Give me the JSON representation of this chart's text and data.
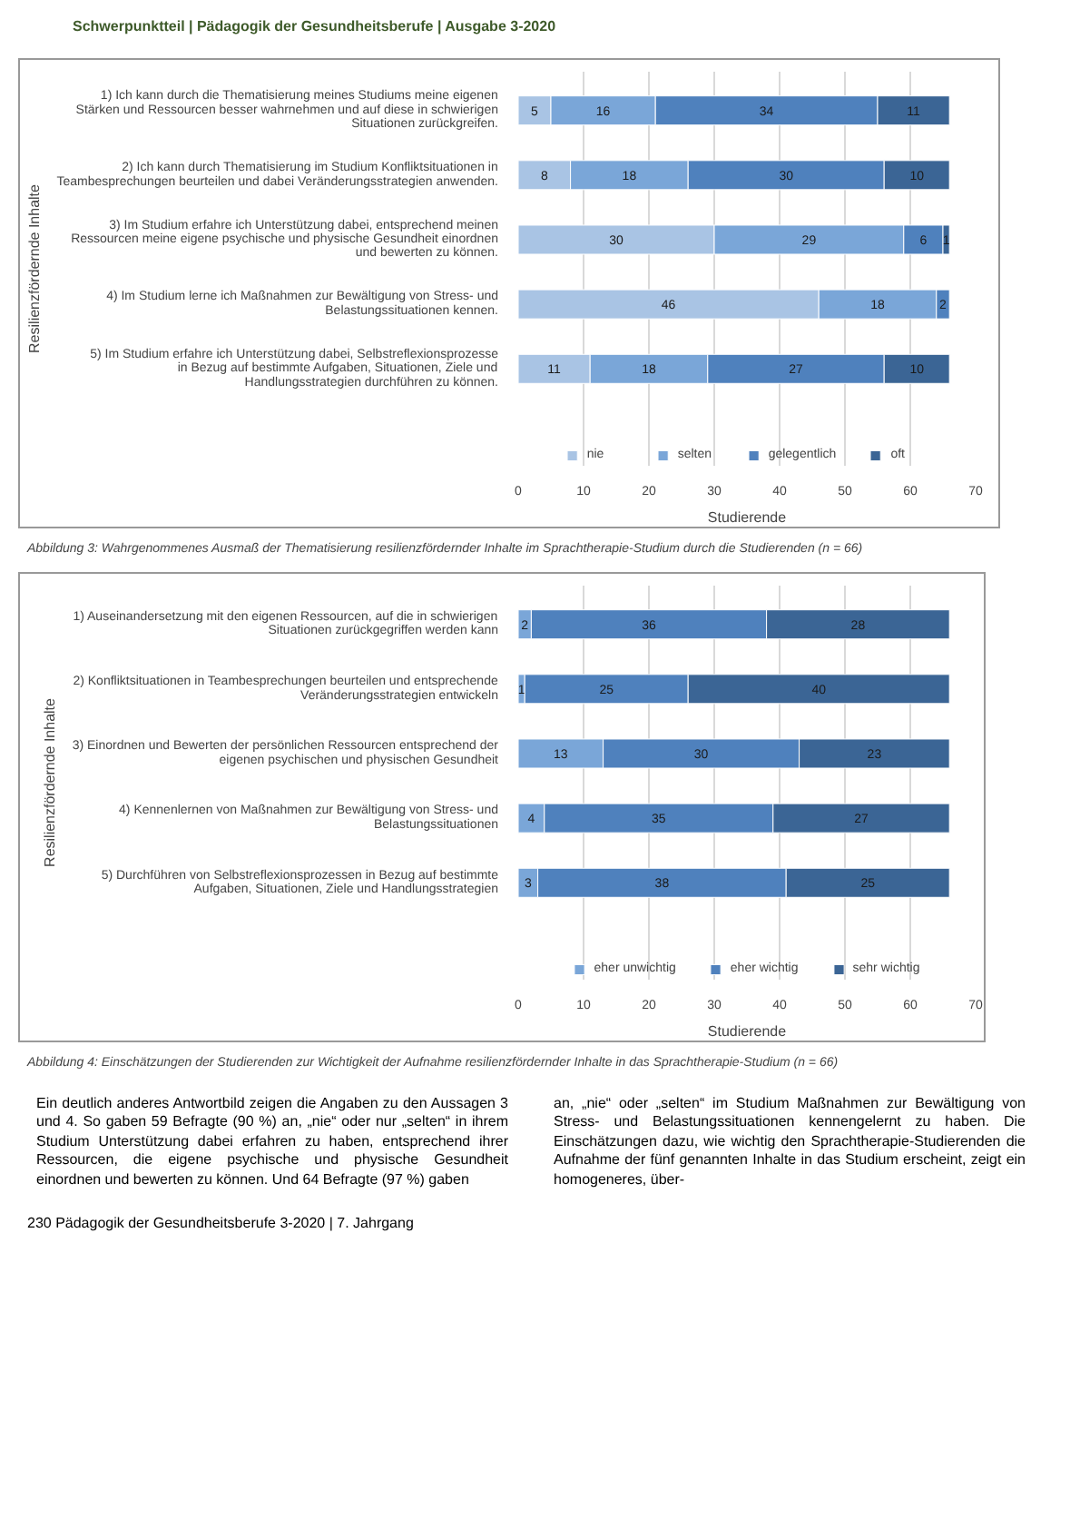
{
  "chart_data": [
    {
      "type": "bar",
      "orientation": "horizontal",
      "stacked": true,
      "data_labels": true,
      "grid": "x",
      "legend": "bottom",
      "title": "Abbildung 3: Wahrgenommenes Ausmaß der Thematisierung resilienzfördernder Inhalte im Sprachtherapie-Studium durch die Studierenden (n = 66)",
      "xlabel": "Studierende",
      "ylabel": "Resilienzfördernde Inhalte",
      "annotations": [
        "Schwerpunktteil | Pädagogik der Gesundheitsberufe | Ausgabe 3-2020"
      ],
      "categories": [
        "1) Ich kann durch die Thematisierung meines Studiums meine eigenen Stärken und Ressourcen besser wahrnehmen und auf diese in schwierigen Situationen zurückgreifen.",
        "2) Ich kann durch Thematisierung im Studium Konfliktsituationen in Teambesprechungen beurteilen und dabei Veränderungsstrategien anwenden.",
        "3) Im Studium erfahre ich Unterstützung dabei, entsprechend meinen Ressourcen meine eigene psychische und physische Gesundheit einordnen und bewerten zu können.",
        "4) Im Studium lerne ich Maßnahmen zur Bewältigung von Stress- und Belastungssituationen kennen.",
        "5) Im Studium erfahre ich Unterstützung dabei, Selbstreflexionsprozesse in Bezug auf bestimmte Aufgaben, Situationen, Ziele und Handlungsstrategien durchführen zu können."
      ],
      "xlim": [
        0,
        70
      ],
      "xticks": [
        0,
        10,
        20,
        30,
        40,
        50,
        60,
        70
      ],
      "series": [
        {
          "name": "nie",
          "color": "#a9c4e4",
          "values": [
            5,
            8,
            30,
            46,
            11
          ]
        },
        {
          "name": "selten",
          "color": "#7aa6d8",
          "values": [
            16,
            18,
            29,
            18,
            18
          ]
        },
        {
          "name": "gelegentlich",
          "color": "#4f81bd",
          "values": [
            34,
            30,
            6,
            2,
            27
          ]
        },
        {
          "name": "oft",
          "color": "#3b6595",
          "values": [
            11,
            10,
            1,
            null,
            10
          ]
        }
      ]
    },
    {
      "type": "bar",
      "orientation": "horizontal",
      "stacked": true,
      "data_labels": true,
      "grid": "x",
      "legend": "bottom",
      "title": "Abbildung 4: Einschätzungen der Studierenden zur Wichtigkeit der Aufnahme resilienzfördernder Inhalte in das Sprachtherapie-Studium (n = 66)",
      "xlabel": "Studierende",
      "ylabel": "Resilienzfördernde Inhalte",
      "annotations": [
        "Ein deutlich anderes Antwortbild zeigen die Angaben zu den Aussagen 3 und 4. So gaben 59 Befragte (90 %) an, „nie“ oder nur „selten“ in ihrem Studium Unterstützung dabei erfahren zu haben, entsprechend ihrer Ressourcen, die eigene psychische und physische Gesundheit einordnen und bewerten zu können. Und 64 Befragte (97 %) gaben",
        "an, „nie“ oder „selten“ im Studium Maßnahmen zur Bewältigung von Stress- und Belastungssituationen kennengelernt zu haben. Die Einschätzungen dazu, wie wichtig den Sprachtherapie-Studierenden die Aufnahme der fünf genannten Inhalte in das Studium erscheint, zeigt ein homogeneres, über-",
        "230   Pädagogik der Gesundheitsberufe 3-2020 | 7. Jahrgang"
      ],
      "categories": [
        "1) Auseinandersetzung mit den eigenen Ressourcen, auf die in schwierigen Situationen zurückgegriffen werden kann",
        "2) Konfliktsituationen in Teambesprechungen beurteilen und entsprechende Veränderungsstrategien entwickeln",
        "3) Einordnen und Bewerten der persönlichen Ressourcen entsprechend der eigenen psychischen und physischen Gesundheit",
        "4) Kennenlernen von Maßnahmen zur Bewältigung von Stress- und Belastungssituationen",
        "5) Durchführen von Selbstreflexionsprozessen in Bezug auf bestimmte Aufgaben, Situationen, Ziele und Handlungsstrategien"
      ],
      "xlim": [
        0,
        70
      ],
      "xticks": [
        0,
        10,
        20,
        30,
        40,
        50,
        60,
        70
      ],
      "series": [
        {
          "name": "eher unwichtig",
          "color": "#7aa6d8",
          "values": [
            2,
            1,
            13,
            4,
            3
          ]
        },
        {
          "name": "eher wichtig",
          "color": "#4f81bd",
          "values": [
            36,
            25,
            30,
            35,
            38
          ]
        },
        {
          "name": "sehr wichtig",
          "color": "#3b6595",
          "values": [
            28,
            40,
            23,
            27,
            25
          ]
        }
      ]
    }
  ]
}
